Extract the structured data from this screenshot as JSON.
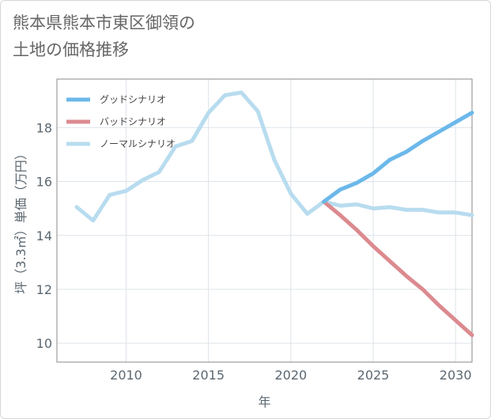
{
  "header": {
    "title_line1": "熊本県熊本市東区御領の",
    "title_line2": "土地の価格推移"
  },
  "chart_data": {
    "type": "line",
    "xlabel": "年",
    "ylabel": "坪（3.3㎡）単価（万円）",
    "xlim": [
      2005.8,
      2031
    ],
    "ylim": [
      9.3,
      19.8
    ],
    "xticks": [
      2010,
      2015,
      2020,
      2025,
      2030
    ],
    "yticks": [
      10,
      12,
      14,
      16,
      18
    ],
    "grid": true,
    "legend_position": "top-left",
    "series": [
      {
        "name": "グッドシナリオ",
        "color": "#6cb8ea",
        "x": [
          2022,
          2023,
          2024,
          2025,
          2026,
          2027,
          2028,
          2029,
          2030,
          2031
        ],
        "y": [
          15.25,
          15.7,
          15.95,
          16.3,
          16.8,
          17.1,
          17.5,
          17.85,
          18.2,
          18.55
        ]
      },
      {
        "name": "バッドシナリオ",
        "color": "#dc8a8f",
        "x": [
          2022,
          2023,
          2024,
          2025,
          2026,
          2027,
          2028,
          2029,
          2030,
          2031
        ],
        "y": [
          15.25,
          14.75,
          14.2,
          13.6,
          13.05,
          12.5,
          12.0,
          11.4,
          10.85,
          10.3
        ]
      },
      {
        "name": "ノーマルシナリオ",
        "color": "#b8dcef",
        "x": [
          2007,
          2008,
          2009,
          2010,
          2011,
          2012,
          2013,
          2014,
          2015,
          2016,
          2017,
          2018,
          2019,
          2020,
          2021,
          2022,
          2023,
          2024,
          2025,
          2026,
          2027,
          2028,
          2029,
          2030,
          2031
        ],
        "y": [
          15.05,
          14.55,
          15.5,
          15.65,
          16.05,
          16.35,
          17.3,
          17.5,
          18.55,
          19.2,
          19.3,
          18.6,
          16.8,
          15.55,
          14.8,
          15.25,
          15.1,
          15.15,
          15.0,
          15.05,
          14.95,
          14.95,
          14.85,
          14.85,
          14.75
        ]
      }
    ]
  }
}
